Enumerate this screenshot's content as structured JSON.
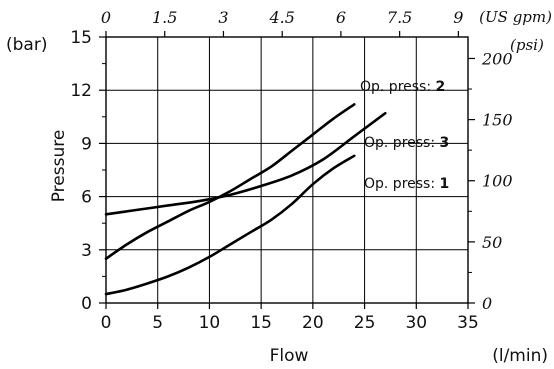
{
  "chart_data": {
    "type": "line",
    "xlabel": "Flow",
    "xunit": "(l/min)",
    "ylabel": "Pressure",
    "yunit": "(bar)",
    "xlim": [
      0,
      35
    ],
    "ylim": [
      0,
      15
    ],
    "x_ticks": [
      "0",
      "5",
      "10",
      "15",
      "20",
      "25",
      "30",
      "35"
    ],
    "y_ticks": [
      "0",
      "3",
      "6",
      "9",
      "12",
      "15"
    ],
    "top_axis": {
      "unit": "(US gpm)",
      "ticks": [
        "0",
        "1.5",
        "3",
        "4.5",
        "6",
        "7.5",
        "9"
      ]
    },
    "right_axis": {
      "unit": "(psi)",
      "ticks": [
        "0",
        "50",
        "100",
        "150",
        "200"
      ]
    },
    "grid": true,
    "series": [
      {
        "name_prefix": "Op. press: ",
        "name_num": "2",
        "x": [
          0,
          2,
          4,
          6,
          8,
          10,
          12,
          14,
          16,
          18,
          20,
          22,
          24
        ],
        "y": [
          2.5,
          3.3,
          4.0,
          4.6,
          5.2,
          5.7,
          6.3,
          7.0,
          7.7,
          8.6,
          9.5,
          10.4,
          11.2
        ]
      },
      {
        "name_prefix": "Op. press: ",
        "name_num": "3",
        "x": [
          0,
          3,
          6,
          9,
          12,
          15,
          18,
          21,
          24,
          27
        ],
        "y": [
          5.0,
          5.25,
          5.5,
          5.75,
          6.1,
          6.6,
          7.2,
          8.1,
          9.4,
          10.7
        ]
      },
      {
        "name_prefix": "Op. press: ",
        "name_num": "1",
        "x": [
          0,
          2,
          4,
          6,
          8,
          10,
          12,
          14,
          16,
          18,
          20,
          22,
          24
        ],
        "y": [
          0.5,
          0.75,
          1.1,
          1.5,
          2.0,
          2.6,
          3.3,
          4.0,
          4.7,
          5.6,
          6.7,
          7.6,
          8.3
        ]
      }
    ]
  }
}
